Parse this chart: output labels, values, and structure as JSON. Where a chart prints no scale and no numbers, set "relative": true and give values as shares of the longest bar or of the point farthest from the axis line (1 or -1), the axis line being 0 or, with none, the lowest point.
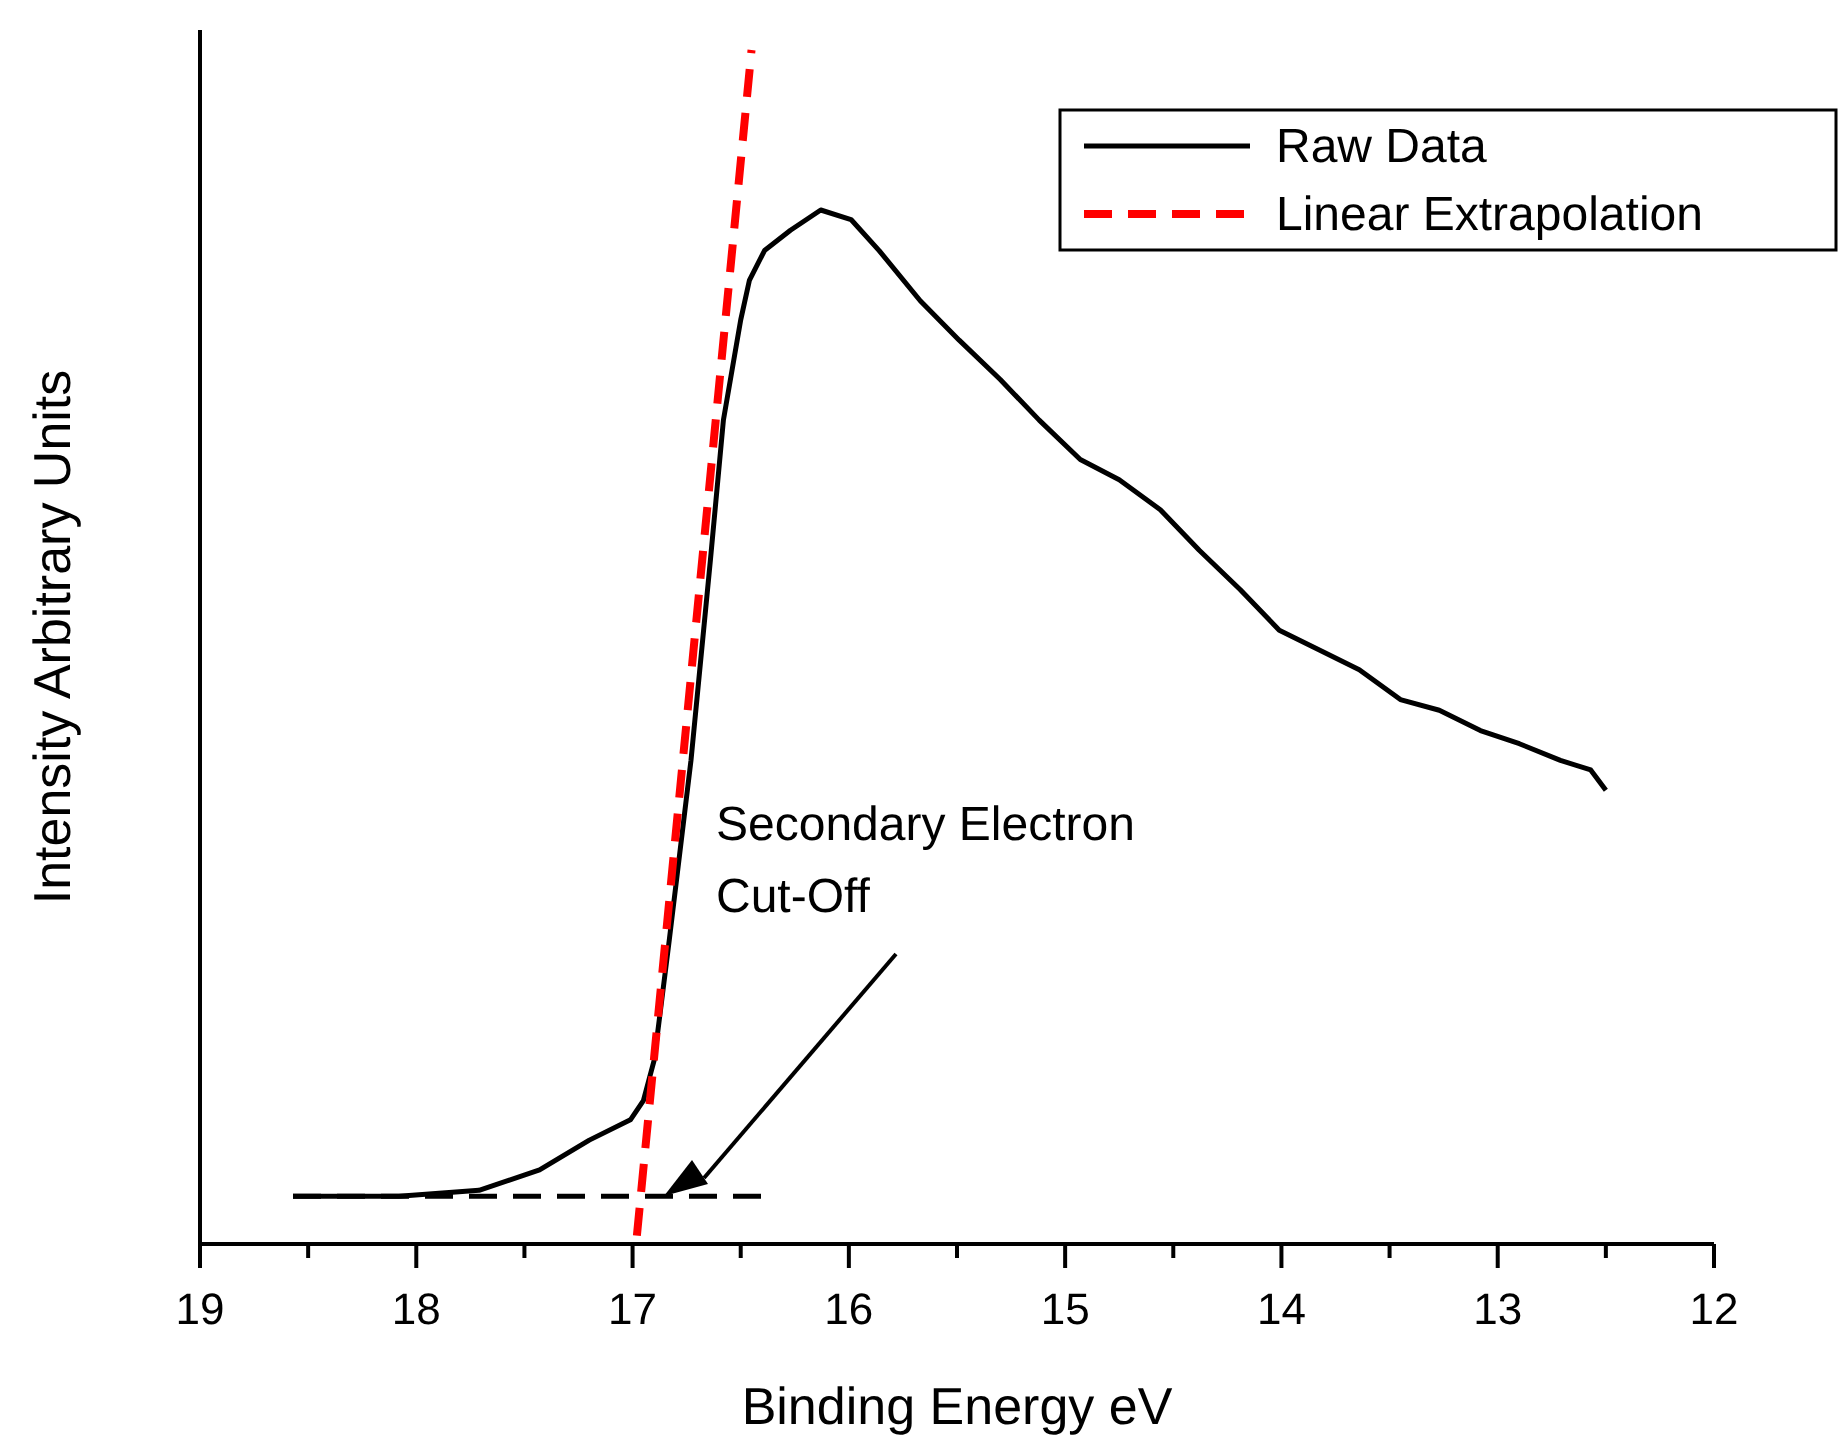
{
  "chart_data": {
    "type": "line",
    "xlabel": "Binding Energy eV",
    "ylabel": "Intensity Arbitrary Units",
    "relative": true,
    "xlim": [
      19,
      12
    ],
    "xticks": [
      19,
      {
        "value": 18.5,
        "label": null
      },
      18,
      {
        "value": 17.5,
        "label": null
      },
      17,
      {
        "value": 16.5,
        "label": null
      },
      16,
      {
        "value": 15.5,
        "label": null
      },
      15,
      {
        "value": 14.5,
        "label": null
      },
      14,
      {
        "value": 13.5,
        "label": null
      },
      13,
      {
        "value": 12.5,
        "label": null
      },
      12
    ],
    "legend": "top right",
    "series": [
      {
        "name": "Raw Data",
        "color": "#000000",
        "line_style": "solid",
        "x": [
          18.57,
          18.08,
          17.71,
          17.43,
          17.2,
          17.01,
          16.95,
          16.9,
          16.83,
          16.73,
          16.64,
          16.58,
          16.5,
          16.46,
          16.39,
          16.27,
          16.13,
          15.99,
          15.86,
          15.67,
          15.49,
          15.3,
          15.12,
          14.93,
          14.75,
          14.56,
          14.38,
          14.19,
          14.01,
          13.82,
          13.64,
          13.45,
          13.27,
          13.08,
          12.9,
          12.71,
          12.57,
          12.5
        ],
        "values": [
          0.04,
          0.04,
          0.045,
          0.062,
          0.087,
          0.104,
          0.12,
          0.154,
          0.255,
          0.405,
          0.573,
          0.69,
          0.774,
          0.807,
          0.832,
          0.849,
          0.866,
          0.858,
          0.832,
          0.79,
          0.757,
          0.724,
          0.69,
          0.657,
          0.64,
          0.615,
          0.581,
          0.548,
          0.514,
          0.497,
          0.481,
          0.456,
          0.447,
          0.43,
          0.419,
          0.405,
          0.397,
          0.38
        ]
      },
      {
        "name": "Linear Extrapolation",
        "color": "#ff0000",
        "line_style": "dashed",
        "x": [
          16.98,
          16.45
        ],
        "values": [
          0.007,
          1
        ]
      },
      {
        "color": "#000000",
        "line_style": "dashed",
        "x": [
          18.57,
          16.38
        ],
        "values": [
          0.04,
          0.04
        ]
      }
    ],
    "annotations": [
      "Secondary Electron\nCut-Off"
    ]
  }
}
